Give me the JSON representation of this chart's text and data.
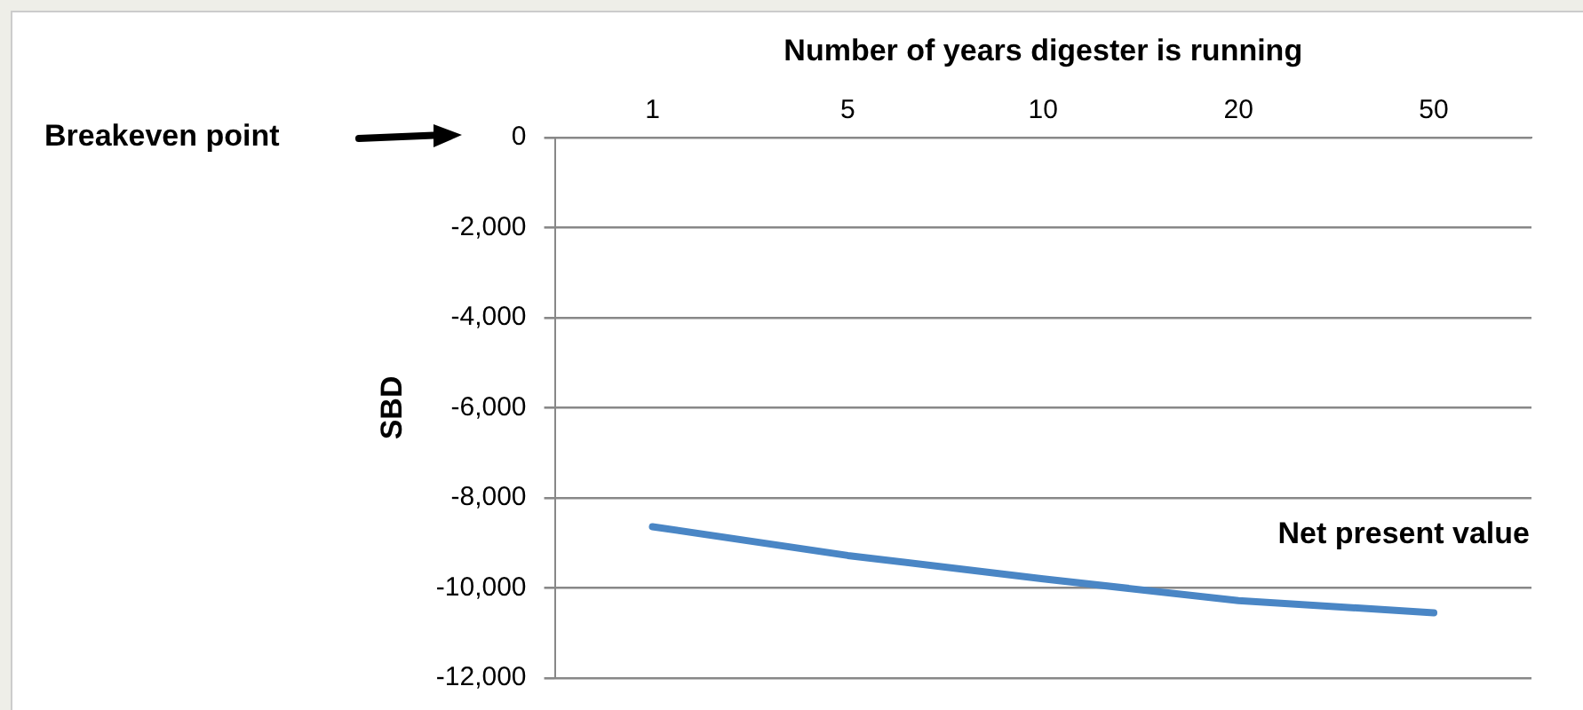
{
  "chart_data": {
    "type": "line",
    "xlabel": "Number of years digester is running",
    "ylabel": "SBD",
    "categories": [
      "1",
      "5",
      "10",
      "20",
      "50"
    ],
    "series": [
      {
        "name": "Net present value",
        "color": "#4a86c5",
        "values": [
          -8640,
          -9280,
          -9800,
          -10280,
          -10550
        ]
      }
    ],
    "ylim": [
      -12000,
      0
    ],
    "yticks": [
      {
        "value": -12000,
        "label": "-12,000"
      },
      {
        "value": -10000,
        "label": "-10,000"
      },
      {
        "value": -8000,
        "label": "-8,000"
      },
      {
        "value": -6000,
        "label": "-6,000"
      },
      {
        "value": -4000,
        "label": "-4,000"
      },
      {
        "value": -2000,
        "label": "-2,000"
      },
      0
    ],
    "grid": "y",
    "legend": false,
    "marker": "none",
    "line_style": "solid",
    "annotations": [
      "Breakeven point"
    ]
  }
}
